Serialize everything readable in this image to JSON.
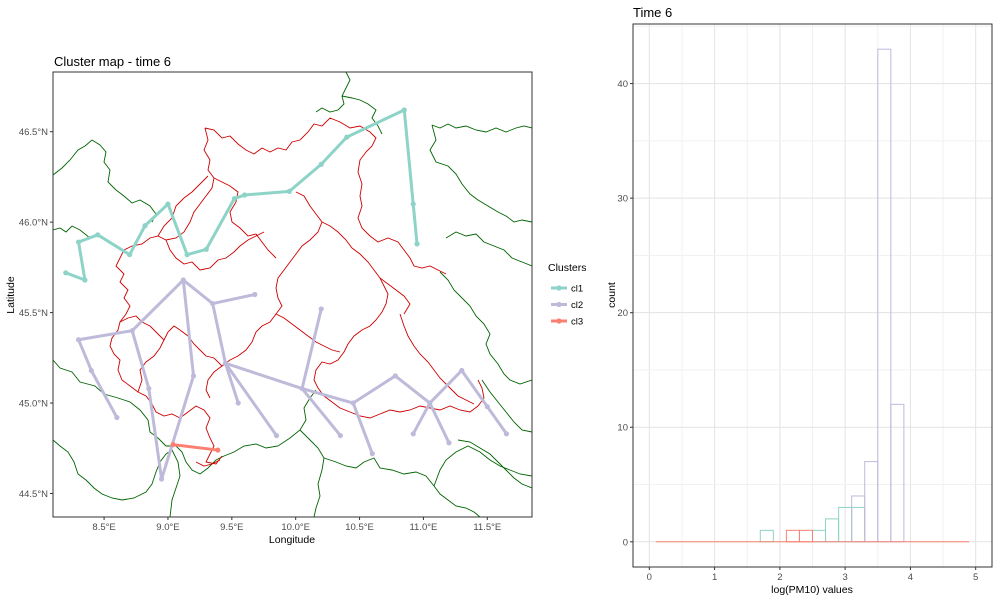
{
  "map_panel": {
    "title": "Cluster map - time 6",
    "xlabel": "Longitude",
    "ylabel": "Latitude",
    "x_ticks": [
      "8.5°E",
      "9.0°E",
      "9.5°E",
      "10.0°E",
      "10.5°E",
      "11.0°E",
      "11.5°E"
    ],
    "y_ticks": [
      "44.5°N",
      "45.0°N",
      "45.5°N",
      "46.0°N",
      "46.5°N"
    ],
    "legend": {
      "title": "Clusters",
      "items": [
        {
          "label": "cl1",
          "color": "#8dd3c7"
        },
        {
          "label": "cl2",
          "color": "#bebada"
        },
        {
          "label": "cl3",
          "color": "#fb8072"
        }
      ]
    }
  },
  "hist_panel": {
    "title": "Time 6",
    "xlabel": "log(PM10) values",
    "ylabel": "count",
    "x_ticks": [
      "0",
      "1",
      "2",
      "3",
      "4",
      "5"
    ],
    "y_ticks": [
      "0",
      "10",
      "20",
      "30",
      "40"
    ]
  },
  "chart_data": [
    {
      "type": "scatter",
      "title": "Cluster map - time 6",
      "xlabel": "Longitude",
      "ylabel": "Latitude",
      "xlim": [
        8.1,
        11.85
      ],
      "ylim": [
        44.37,
        46.83
      ],
      "grid": false,
      "legend_position": "right",
      "series": [
        {
          "name": "cl1",
          "color": "#8dd3c7",
          "x": [
            8.2,
            8.35,
            8.3,
            8.45,
            8.7,
            8.82,
            9.0,
            9.15,
            9.3,
            9.52,
            9.6,
            9.95,
            10.2,
            10.4,
            10.85,
            10.92,
            10.95
          ],
          "y": [
            45.72,
            45.68,
            45.89,
            45.93,
            45.82,
            45.98,
            46.1,
            45.82,
            45.85,
            46.13,
            46.15,
            46.17,
            46.32,
            46.47,
            46.62,
            46.1,
            45.88
          ]
        },
        {
          "name": "cl2",
          "color": "#bebada",
          "x": [
            8.3,
            8.4,
            8.6,
            8.72,
            8.85,
            8.95,
            9.12,
            9.2,
            9.35,
            9.45,
            9.55,
            9.68,
            9.85,
            10.05,
            10.2,
            10.35,
            10.45,
            10.6,
            10.78,
            10.92,
            11.05,
            11.2,
            11.3,
            11.5,
            11.65
          ],
          "y": [
            45.35,
            45.18,
            44.92,
            45.4,
            45.08,
            44.58,
            45.68,
            45.15,
            45.55,
            45.22,
            45.0,
            45.6,
            44.82,
            45.08,
            45.52,
            44.82,
            45.0,
            44.72,
            45.15,
            44.83,
            45.0,
            44.78,
            45.18,
            44.98,
            44.83
          ]
        },
        {
          "name": "cl3",
          "color": "#fb8072",
          "x": [
            9.04,
            9.39
          ],
          "y": [
            44.77,
            44.74
          ]
        }
      ]
    },
    {
      "type": "bar",
      "title": "Time 6",
      "xlabel": "log(PM10) values",
      "ylabel": "count",
      "xlim": [
        -0.25,
        5.25
      ],
      "ylim": [
        -2.2,
        45.2
      ],
      "grid": true,
      "bin_width": 0.2,
      "series": [
        {
          "name": "cl1",
          "color": "#8dd3c7",
          "x": [
            1.4,
            1.6,
            1.8,
            2.0,
            2.2,
            2.4,
            2.6,
            2.8,
            3.0,
            3.2,
            3.4,
            3.6,
            3.8,
            4.0,
            4.2,
            4.4,
            4.6,
            4.8
          ],
          "values": [
            0,
            0,
            1,
            0,
            0,
            0,
            1,
            2,
            3,
            3,
            0,
            0,
            0,
            0,
            0,
            0,
            0,
            0
          ]
        },
        {
          "name": "cl2",
          "color": "#bebada",
          "x": [
            1.4,
            1.6,
            1.8,
            2.0,
            2.2,
            2.4,
            2.6,
            2.8,
            3.0,
            3.2,
            3.4,
            3.6,
            3.8,
            4.0,
            4.2,
            4.4,
            4.6,
            4.8
          ],
          "values": [
            0,
            0,
            0,
            0,
            0,
            0,
            0,
            0,
            0,
            4,
            7,
            43,
            12,
            0,
            0,
            0,
            0,
            0
          ]
        },
        {
          "name": "cl3",
          "color": "#fb8072",
          "x": [
            1.4,
            1.6,
            1.8,
            2.0,
            2.2,
            2.4,
            2.6,
            2.8,
            3.0,
            3.2,
            3.4,
            3.6,
            3.8,
            4.0,
            4.2,
            4.4,
            4.6,
            4.8
          ],
          "values": [
            0,
            0,
            0,
            0,
            1,
            1,
            0,
            0,
            0,
            0,
            0,
            0,
            0,
            0,
            0,
            0,
            0,
            0
          ]
        }
      ]
    }
  ]
}
